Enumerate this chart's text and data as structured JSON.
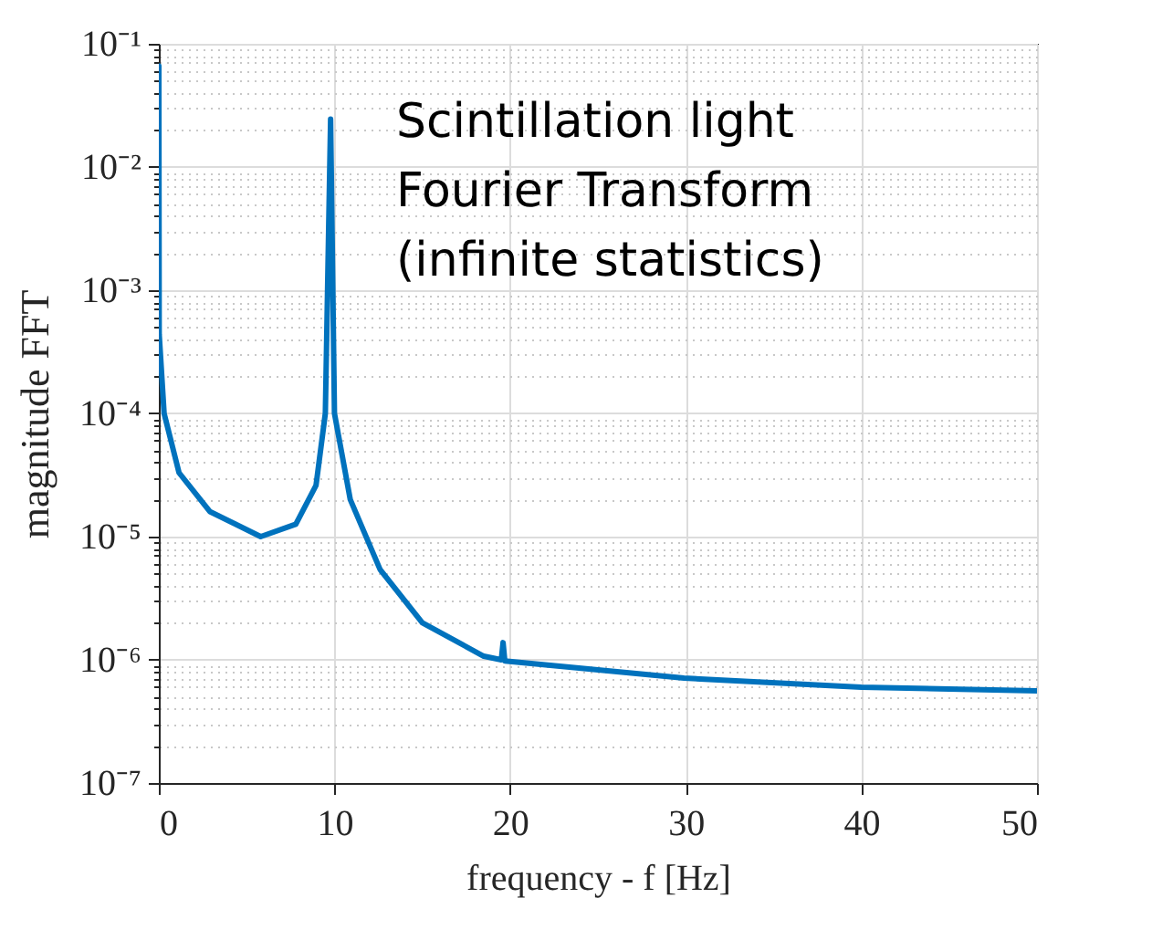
{
  "chart_data": {
    "type": "line",
    "xlabel": "frequency - f [Hz]",
    "ylabel": "magnitude FFT",
    "annotations": [
      "Scintillation light\nFourier Transform\n(infinite statistics)"
    ],
    "x": [
      0,
      0.02,
      0.3,
      1.15,
      2.9,
      5.8,
      7.8,
      8.95,
      9.48,
      9.78,
      10.0,
      10.9,
      12.6,
      15.0,
      18.5,
      19.5,
      19.6,
      19.7,
      29.9,
      40.0,
      50.0
    ],
    "series": [
      {
        "color": "#0072bd",
        "values": [
          0.066,
          0.00044,
          0.0001,
          3.3e-05,
          1.6e-05,
          1e-05,
          1.26e-05,
          2.6e-05,
          0.0001,
          0.0245,
          0.0001,
          2e-05,
          5.4e-06,
          2e-06,
          1.07e-06,
          1e-06,
          1.38e-06,
          9.8e-07,
          7.1e-07,
          6e-07,
          5.6e-07
        ]
      }
    ],
    "xlim": [
      0,
      50
    ],
    "xticks": [
      0,
      10,
      20,
      30,
      40,
      50
    ],
    "ylim": [
      1e-07,
      0.1
    ],
    "yticks": [
      {
        "value": 1e-07,
        "label": "10⁻⁷"
      },
      {
        "value": 2e-07,
        "label": null
      },
      {
        "value": 3e-07,
        "label": null
      },
      {
        "value": 4e-07,
        "label": null
      },
      {
        "value": 5e-07,
        "label": null
      },
      {
        "value": 6e-07,
        "label": null
      },
      {
        "value": 7e-07,
        "label": null
      },
      {
        "value": 8e-07,
        "label": null
      },
      {
        "value": 9e-07,
        "label": null
      },
      {
        "value": 1e-06,
        "label": "10⁻⁶"
      },
      {
        "value": 2e-06,
        "label": null
      },
      {
        "value": 3e-06,
        "label": null
      },
      {
        "value": 4e-06,
        "label": null
      },
      {
        "value": 5e-06,
        "label": null
      },
      {
        "value": 6e-06,
        "label": null
      },
      {
        "value": 7e-06,
        "label": null
      },
      {
        "value": 8e-06,
        "label": null
      },
      {
        "value": 9e-06,
        "label": null
      },
      {
        "value": 1e-05,
        "label": "10⁻⁵"
      },
      {
        "value": 2e-05,
        "label": null
      },
      {
        "value": 3e-05,
        "label": null
      },
      {
        "value": 4e-05,
        "label": null
      },
      {
        "value": 5e-05,
        "label": null
      },
      {
        "value": 6e-05,
        "label": null
      },
      {
        "value": 7e-05,
        "label": null
      },
      {
        "value": 8e-05,
        "label": null
      },
      {
        "value": 9e-05,
        "label": null
      },
      {
        "value": 0.0001,
        "label": "10⁻⁴"
      },
      {
        "value": 0.0002,
        "label": null
      },
      {
        "value": 0.0003,
        "label": null
      },
      {
        "value": 0.0004,
        "label": null
      },
      {
        "value": 0.0005,
        "label": null
      },
      {
        "value": 0.0006,
        "label": null
      },
      {
        "value": 0.0007,
        "label": null
      },
      {
        "value": 0.0008,
        "label": null
      },
      {
        "value": 0.0009,
        "label": null
      },
      {
        "value": 0.001,
        "label": "10⁻³"
      },
      {
        "value": 0.002,
        "label": null
      },
      {
        "value": 0.003,
        "label": null
      },
      {
        "value": 0.004,
        "label": null
      },
      {
        "value": 0.005,
        "label": null
      },
      {
        "value": 0.006,
        "label": null
      },
      {
        "value": 0.007,
        "label": null
      },
      {
        "value": 0.008,
        "label": null
      },
      {
        "value": 0.009,
        "label": null
      },
      {
        "value": 0.01,
        "label": "10⁻²"
      },
      {
        "value": 0.02,
        "label": null
      },
      {
        "value": 0.03,
        "label": null
      },
      {
        "value": 0.04,
        "label": null
      },
      {
        "value": 0.05,
        "label": null
      },
      {
        "value": 0.06,
        "label": null
      },
      {
        "value": 0.07,
        "label": null
      },
      {
        "value": 0.08,
        "label": null
      },
      {
        "value": 0.09,
        "label": null
      },
      {
        "value": 0.1,
        "label": "10⁻¹"
      }
    ],
    "log": "y",
    "grid": true,
    "line_style": "solid"
  }
}
